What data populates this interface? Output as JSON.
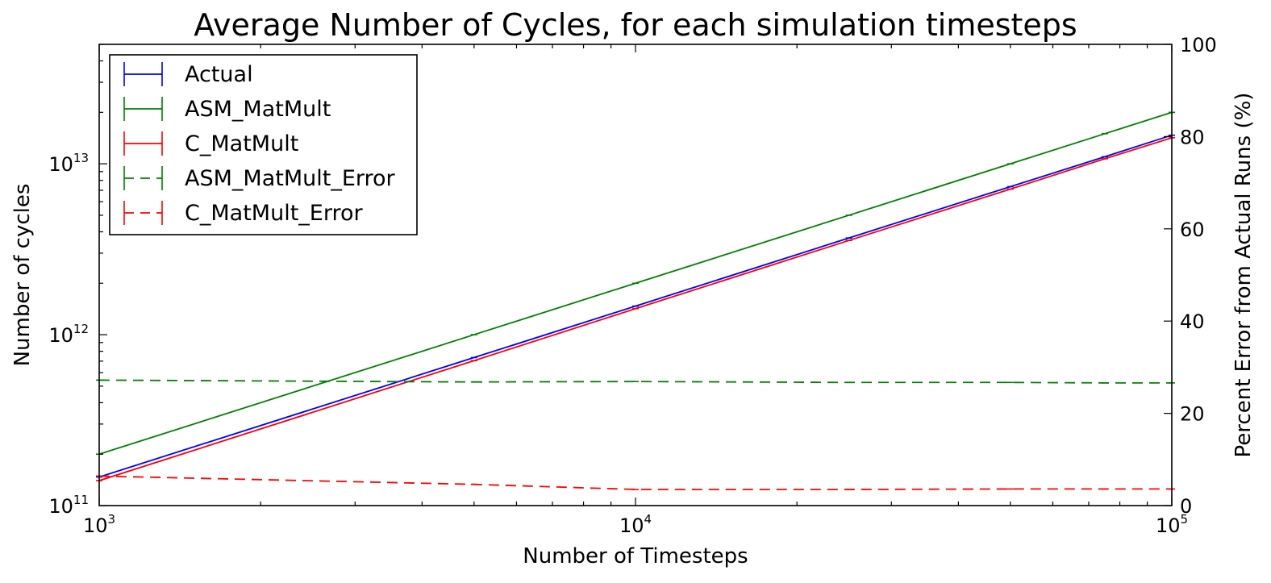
{
  "chart_data": {
    "type": "line",
    "title": "Average Number of Cycles, for each simulation timesteps",
    "xlabel": "Number of Timesteps",
    "ylabel": "Number of cycles",
    "y2label": "Percent Error from Actual Runs (%)",
    "xscale": "log",
    "yscale": "log",
    "xlim": [
      1000,
      100000
    ],
    "ylim": [
      100000000000,
      50000000000000
    ],
    "y2lim": [
      0,
      100
    ],
    "grid": false,
    "legend_position": "top-left",
    "x_ticks": [
      {
        "base": "10",
        "exp": "3"
      },
      {
        "base": "10",
        "exp": "4"
      },
      {
        "base": "10",
        "exp": "5"
      }
    ],
    "y_ticks": [
      {
        "base": "10",
        "exp": "11"
      },
      {
        "base": "10",
        "exp": "12"
      },
      {
        "base": "10",
        "exp": "13"
      }
    ],
    "y2_ticks": [
      "0",
      "20",
      "40",
      "60",
      "80",
      "100"
    ],
    "series": [
      {
        "name": "Actual",
        "axis": "left",
        "color": "#0000ff",
        "style": "solid",
        "x": [
          1000,
          5000,
          10000,
          25000,
          50000,
          75000,
          100000
        ],
        "y": [
          147000000000,
          735000000000,
          1470000000000,
          3680000000000,
          7350000000000,
          11000000000000,
          14700000000000
        ]
      },
      {
        "name": "ASM_MatMult",
        "axis": "left",
        "color": "#008000",
        "style": "solid",
        "x": [
          1000,
          5000,
          10000,
          25000,
          50000,
          75000,
          100000
        ],
        "y": [
          200000000000,
          1000000000000,
          2000000000000,
          5000000000000,
          10000000000000,
          15000000000000,
          20000000000000
        ]
      },
      {
        "name": "C_MatMult",
        "axis": "left",
        "color": "#ff0000",
        "style": "solid",
        "x": [
          1000,
          5000,
          10000,
          25000,
          50000,
          75000,
          100000
        ],
        "y": [
          140000000000,
          705000000000,
          1420000000000,
          3560000000000,
          7110000000000,
          10700000000000,
          14200000000000
        ]
      },
      {
        "name": "ASM_MatMult_Error",
        "axis": "right",
        "color": "#008000",
        "style": "dashed",
        "x": [
          1000,
          5000,
          10000,
          25000,
          50000,
          75000,
          100000
        ],
        "y": [
          27.2,
          26.8,
          26.9,
          26.7,
          26.7,
          26.6,
          26.6
        ]
      },
      {
        "name": "C_MatMult_Error",
        "axis": "right",
        "color": "#ff0000",
        "style": "dashed",
        "x": [
          1000,
          5000,
          10000,
          25000,
          50000,
          75000,
          100000
        ],
        "y": [
          6.4,
          4.6,
          3.5,
          3.5,
          3.6,
          3.6,
          3.6
        ]
      }
    ]
  }
}
